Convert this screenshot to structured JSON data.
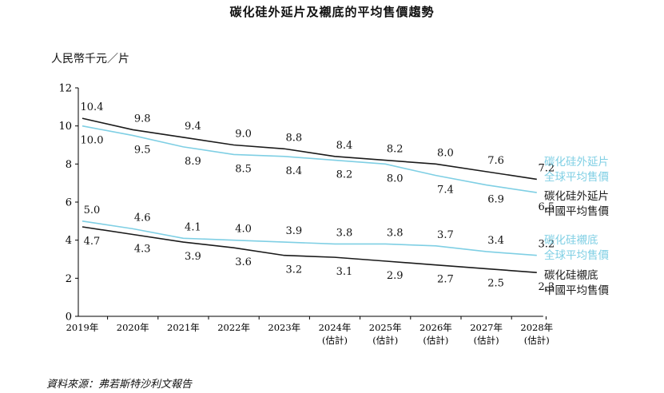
{
  "title": "碳化硅外延片及襯底的平均售價趨勢",
  "unit_label": "人民幣千元／片",
  "source": "資料來源：弗若斯特沙利文報告",
  "colors": {
    "global": "#7fcfe4",
    "china": "#1a1a1a"
  },
  "chart_data": {
    "type": "line",
    "ylim": [
      0,
      12
    ],
    "yticks": [
      0,
      2,
      4,
      6,
      8,
      10,
      12
    ],
    "categories": [
      [
        "2019年"
      ],
      [
        "2020年"
      ],
      [
        "2021年"
      ],
      [
        "2022年"
      ],
      [
        "2023年"
      ],
      [
        "2024年",
        "(估計)"
      ],
      [
        "2025年",
        "(估計)"
      ],
      [
        "2026年",
        "(估計)"
      ],
      [
        "2027年",
        "(估計)"
      ],
      [
        "2028年",
        "(估計)"
      ]
    ],
    "series": [
      {
        "name": [
          "碳化硅外延片",
          "中國平均售價"
        ],
        "color": "#1a1a1a",
        "labels_above": true,
        "values": [
          10.4,
          9.8,
          9.4,
          9.0,
          8.8,
          8.4,
          8.2,
          8.0,
          7.6,
          7.2
        ]
      },
      {
        "name": [
          "碳化硅外延片",
          "全球平均售價"
        ],
        "color": "#7fcfe4",
        "labels_above": false,
        "values": [
          10.0,
          9.5,
          8.9,
          8.5,
          8.4,
          8.2,
          8.0,
          7.4,
          6.9,
          6.5
        ]
      },
      {
        "name": [
          "碳化硅襯底",
          "全球平均售價"
        ],
        "color": "#7fcfe4",
        "labels_above": true,
        "values": [
          5.0,
          4.6,
          4.1,
          4.0,
          3.9,
          3.8,
          3.8,
          3.7,
          3.4,
          3.2
        ]
      },
      {
        "name": [
          "碳化硅襯底",
          "中國平均售價"
        ],
        "color": "#1a1a1a",
        "labels_above": false,
        "values": [
          4.7,
          4.3,
          3.9,
          3.6,
          3.2,
          3.1,
          2.9,
          2.7,
          2.5,
          2.3
        ]
      }
    ],
    "legend": [
      {
        "lines": [
          "碳化硅外延片",
          "全球平均售價"
        ],
        "color": "#7fcfe4"
      },
      {
        "lines": [
          "碳化硅外延片",
          "中國平均售價"
        ],
        "color": "#1a1a1a"
      },
      {
        "lines": [
          "碳化硅襯底",
          "全球平均售價"
        ],
        "color": "#7fcfe4"
      },
      {
        "lines": [
          "碳化硅襯底",
          "中國平均售價"
        ],
        "color": "#1a1a1a"
      }
    ],
    "legend_placement": "right",
    "grid": false
  }
}
